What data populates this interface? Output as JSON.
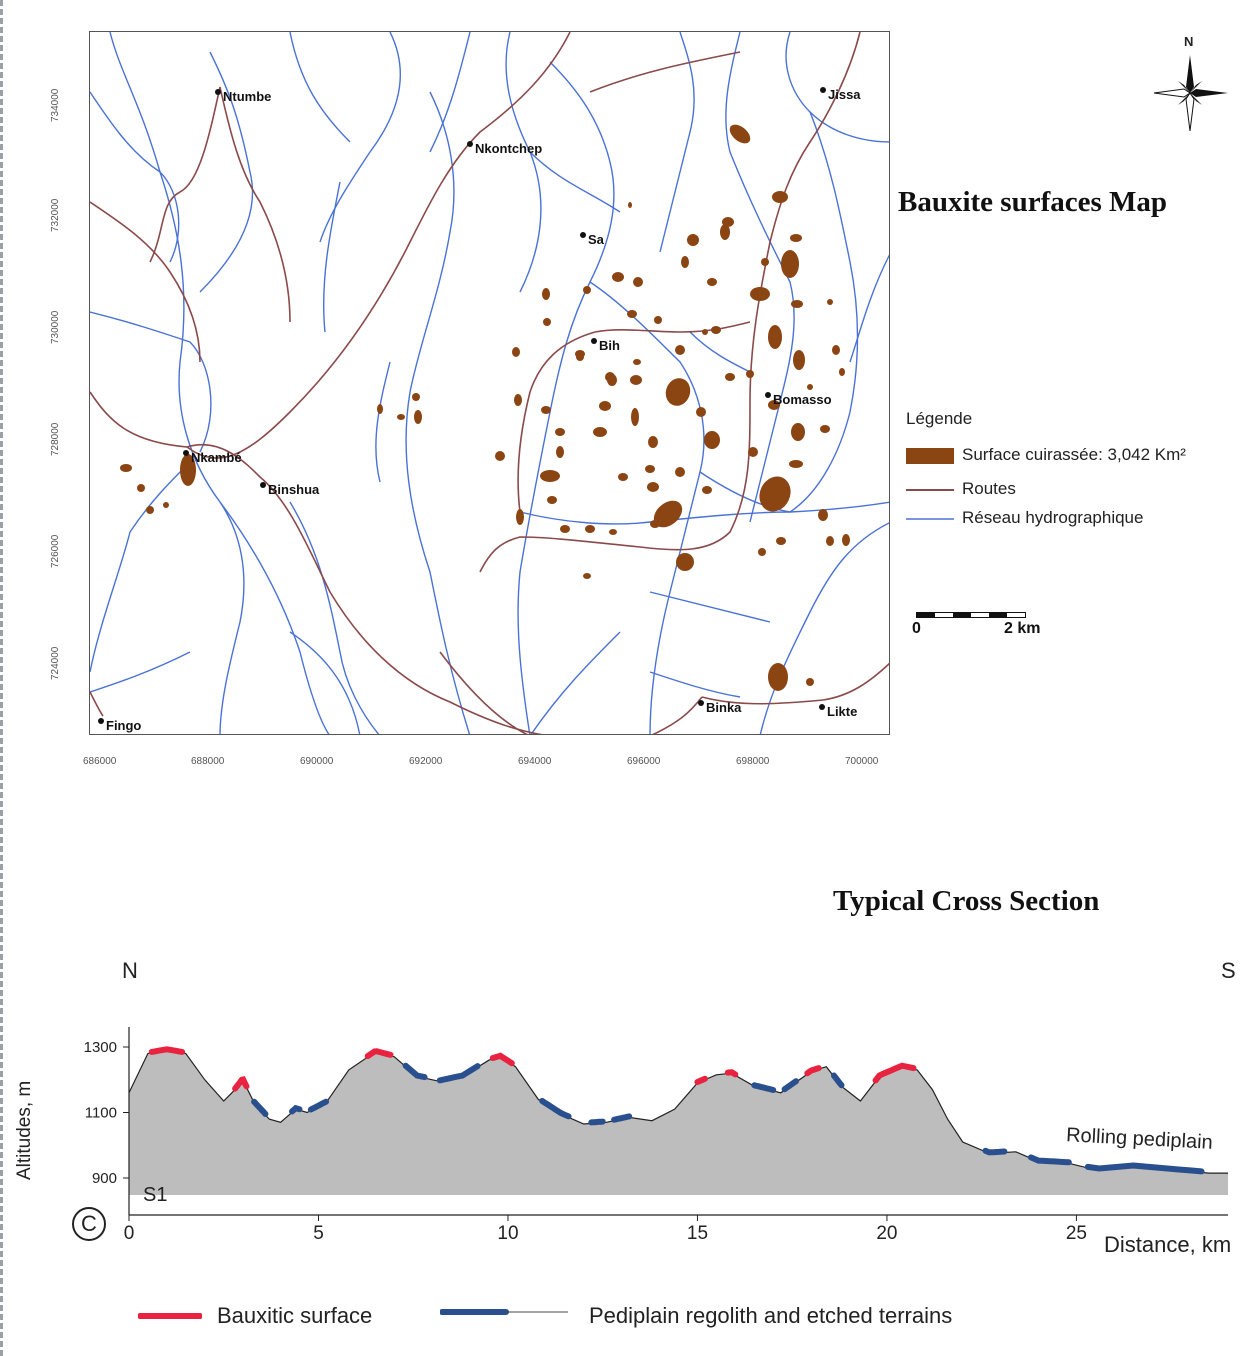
{
  "map": {
    "title": "Bauxite surfaces Map",
    "north_label": "N",
    "places": [
      {
        "name": "Ntumbe"
      },
      {
        "name": "Nkontchep"
      },
      {
        "name": "Jissa"
      },
      {
        "name": "Sa"
      },
      {
        "name": "Bih"
      },
      {
        "name": "Bomasso"
      },
      {
        "name": "Nkambé"
      },
      {
        "name": "Binshua"
      },
      {
        "name": "Binka"
      },
      {
        "name": "Likte"
      },
      {
        "name": "Fingo"
      }
    ],
    "x_ticks": [
      "686000",
      "688000",
      "690000",
      "692000",
      "694000",
      "696000",
      "698000",
      "700000"
    ],
    "y_ticks": [
      "734000",
      "732000",
      "730000",
      "728000",
      "726000",
      "724000"
    ],
    "legend": {
      "title": "Légende",
      "items": [
        {
          "label": "Surface cuirassée: 3,042 Km²",
          "color": "#8b4513"
        },
        {
          "label": "Routes",
          "color": "#8b4a4a"
        },
        {
          "label": "Réseau hydrographique",
          "color": "#4a72d6"
        }
      ]
    },
    "scale": {
      "start": "0",
      "end": "2 km"
    },
    "colors": {
      "bauxite": "#8b4513",
      "road": "#8b4a4a",
      "river": "#4a72d6"
    }
  },
  "section": {
    "title": "Typical Cross Section",
    "left_dir": "N",
    "right_dir": "S",
    "profile_label": "S1",
    "panel_label": "C",
    "annotation": "Rolling pediplain",
    "y_axis_label": "Altitudes, m",
    "x_axis_label": "Distance, km",
    "legend": [
      {
        "label": "Bauxitic surface",
        "color": "#e8223f"
      },
      {
        "label": "Pediplain regolith and etched terrains",
        "color": "#2a4f8f"
      }
    ]
  },
  "chart_data": {
    "type": "area",
    "xlabel": "Distance, km",
    "ylabel": "Altitudes, m",
    "x_ticks": [
      0,
      5,
      10,
      15,
      20,
      25
    ],
    "y_ticks": [
      900,
      1100,
      1300
    ],
    "xlim": [
      0,
      29
    ],
    "ylim": [
      800,
      1350
    ],
    "profile": {
      "x": [
        0,
        0.5,
        1,
        1.5,
        2,
        2.5,
        2.8,
        3,
        3.3,
        3.7,
        4,
        4.4,
        4.7,
        5.2,
        5.8,
        6.5,
        7,
        7.6,
        8.2,
        8.8,
        9.5,
        9.8,
        10.2,
        10.8,
        11.4,
        12,
        12.6,
        13.2,
        13.8,
        14.4,
        15,
        15.5,
        15.9,
        16.5,
        17.2,
        18,
        18.4,
        18.8,
        19.3,
        19.8,
        20.4,
        20.8,
        21.2,
        21.6,
        22,
        22.7,
        23.4,
        24,
        24.8,
        25.5,
        26.5,
        27.5,
        28.5,
        29
      ],
      "y": [
        1160,
        1280,
        1290,
        1280,
        1200,
        1135,
        1170,
        1200,
        1130,
        1080,
        1070,
        1110,
        1100,
        1130,
        1230,
        1285,
        1270,
        1210,
        1195,
        1210,
        1260,
        1270,
        1240,
        1140,
        1095,
        1065,
        1070,
        1085,
        1075,
        1110,
        1190,
        1215,
        1220,
        1180,
        1160,
        1225,
        1240,
        1180,
        1135,
        1210,
        1240,
        1230,
        1170,
        1080,
        1010,
        975,
        980,
        950,
        945,
        925,
        935,
        925,
        915,
        915
      ]
    },
    "bauxitic_surface_km": [
      [
        0.6,
        1.4
      ],
      [
        2.8,
        3.1
      ],
      [
        6.3,
        6.9
      ],
      [
        9.6,
        10.1
      ],
      [
        15.0,
        15.2
      ],
      [
        15.8,
        16.0
      ],
      [
        17.9,
        18.2
      ],
      [
        19.7,
        20.7
      ]
    ],
    "pediplain_regolith_km": [
      [
        3.3,
        3.6
      ],
      [
        4.3,
        4.5
      ],
      [
        4.8,
        5.2
      ],
      [
        7.3,
        7.8
      ],
      [
        8.2,
        9.2
      ],
      [
        10.9,
        11.6
      ],
      [
        12.2,
        12.5
      ],
      [
        12.8,
        13.2
      ],
      [
        16.5,
        17.0
      ],
      [
        17.3,
        17.6
      ],
      [
        18.6,
        18.8
      ],
      [
        22.6,
        23.1
      ],
      [
        23.8,
        24.8
      ],
      [
        25.3,
        28.3
      ]
    ]
  }
}
